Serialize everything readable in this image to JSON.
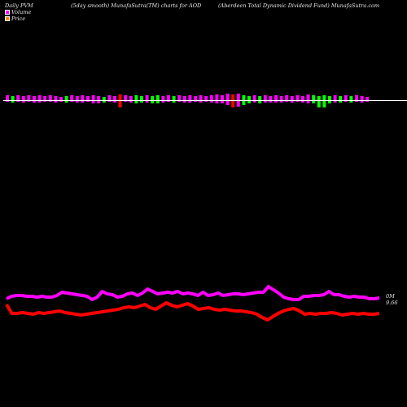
{
  "header": {
    "left": "Daily PVM",
    "center": "(5day smooth) MunafaSutra(TM) charts for AOD",
    "right": "(Aberdeen Total Dynamic Dividend Fund) MunafaSutra.com"
  },
  "legend": {
    "volume": {
      "label": "Volume",
      "color": "#ff00ff"
    },
    "price": {
      "label": "Price",
      "color": "#ff8c00"
    }
  },
  "colors": {
    "up": "#ff00ff",
    "down": "#00ff00",
    "spike": "#ff0000",
    "volume_line": "#ff00ff",
    "price_line": "#ff0000",
    "baseline": "#ffffff"
  },
  "chart_data": {
    "type": "bar",
    "bars": [
      {
        "h": 6,
        "d": 2,
        "c": "up"
      },
      {
        "h": 5,
        "d": 3,
        "c": "down"
      },
      {
        "h": 6,
        "d": 2,
        "c": "up"
      },
      {
        "h": 5,
        "d": 3,
        "c": "up"
      },
      {
        "h": 6,
        "d": 2,
        "c": "up"
      },
      {
        "h": 5,
        "d": 3,
        "c": "up"
      },
      {
        "h": 6,
        "d": 3,
        "c": "up"
      },
      {
        "h": 5,
        "d": 2,
        "c": "up"
      },
      {
        "h": 6,
        "d": 2,
        "c": "up"
      },
      {
        "h": 5,
        "d": 3,
        "c": "up"
      },
      {
        "h": 4,
        "d": 2,
        "c": "up"
      },
      {
        "h": 5,
        "d": 3,
        "c": "down"
      },
      {
        "h": 6,
        "d": 2,
        "c": "up"
      },
      {
        "h": 5,
        "d": 3,
        "c": "up"
      },
      {
        "h": 6,
        "d": 3,
        "c": "up"
      },
      {
        "h": 5,
        "d": 2,
        "c": "up"
      },
      {
        "h": 6,
        "d": 4,
        "c": "up"
      },
      {
        "h": 5,
        "d": 4,
        "c": "up"
      },
      {
        "h": 4,
        "d": 3,
        "c": "down"
      },
      {
        "h": 6,
        "d": 2,
        "c": "up"
      },
      {
        "h": 5,
        "d": 3,
        "c": "up"
      },
      {
        "h": 7,
        "d": 9,
        "c": "spike"
      },
      {
        "h": 6,
        "d": 2,
        "c": "up"
      },
      {
        "h": 5,
        "d": 3,
        "c": "up"
      },
      {
        "h": 6,
        "d": 4,
        "c": "down"
      },
      {
        "h": 5,
        "d": 3,
        "c": "down"
      },
      {
        "h": 6,
        "d": 3,
        "c": "up"
      },
      {
        "h": 5,
        "d": 4,
        "c": "down"
      },
      {
        "h": 6,
        "d": 4,
        "c": "down"
      },
      {
        "h": 5,
        "d": 3,
        "c": "up"
      },
      {
        "h": 6,
        "d": 2,
        "c": "up"
      },
      {
        "h": 5,
        "d": 3,
        "c": "down"
      },
      {
        "h": 6,
        "d": 2,
        "c": "up"
      },
      {
        "h": 5,
        "d": 3,
        "c": "up"
      },
      {
        "h": 6,
        "d": 3,
        "c": "up"
      },
      {
        "h": 5,
        "d": 2,
        "c": "up"
      },
      {
        "h": 6,
        "d": 3,
        "c": "up"
      },
      {
        "h": 5,
        "d": 2,
        "c": "up"
      },
      {
        "h": 6,
        "d": 3,
        "c": "up"
      },
      {
        "h": 7,
        "d": 4,
        "c": "up"
      },
      {
        "h": 6,
        "d": 4,
        "c": "up"
      },
      {
        "h": 8,
        "d": 6,
        "c": "up"
      },
      {
        "h": 7,
        "d": 9,
        "c": "spike"
      },
      {
        "h": 8,
        "d": 8,
        "c": "up"
      },
      {
        "h": 6,
        "d": 6,
        "c": "down"
      },
      {
        "h": 5,
        "d": 4,
        "c": "down"
      },
      {
        "h": 6,
        "d": 3,
        "c": "up"
      },
      {
        "h": 5,
        "d": 4,
        "c": "down"
      },
      {
        "h": 6,
        "d": 3,
        "c": "up"
      },
      {
        "h": 5,
        "d": 3,
        "c": "up"
      },
      {
        "h": 6,
        "d": 3,
        "c": "up"
      },
      {
        "h": 5,
        "d": 3,
        "c": "up"
      },
      {
        "h": 6,
        "d": 2,
        "c": "up"
      },
      {
        "h": 5,
        "d": 3,
        "c": "up"
      },
      {
        "h": 6,
        "d": 2,
        "c": "up"
      },
      {
        "h": 5,
        "d": 3,
        "c": "up"
      },
      {
        "h": 7,
        "d": 4,
        "c": "up"
      },
      {
        "h": 6,
        "d": 4,
        "c": "down"
      },
      {
        "h": 5,
        "d": 9,
        "c": "down"
      },
      {
        "h": 6,
        "d": 9,
        "c": "down"
      },
      {
        "h": 5,
        "d": 4,
        "c": "down"
      },
      {
        "h": 6,
        "d": 3,
        "c": "up"
      },
      {
        "h": 5,
        "d": 3,
        "c": "down"
      },
      {
        "h": 6,
        "d": 2,
        "c": "up"
      },
      {
        "h": 5,
        "d": 3,
        "c": "down"
      },
      {
        "h": 6,
        "d": 2,
        "c": "up"
      },
      {
        "h": 5,
        "d": 3,
        "c": "up"
      },
      {
        "h": 4,
        "d": 2,
        "c": "up"
      }
    ],
    "volume_line": [
      367,
      364,
      363,
      363,
      364,
      364,
      365,
      364,
      365,
      365,
      363,
      359,
      360,
      361,
      362,
      363,
      364,
      368,
      365,
      358,
      361,
      362,
      365,
      364,
      361,
      360,
      363,
      360,
      355,
      358,
      361,
      360,
      359,
      360,
      358,
      361,
      360,
      361,
      363,
      359,
      363,
      362,
      360,
      363,
      362,
      361,
      361,
      362,
      361,
      360,
      359,
      359,
      352,
      356,
      360,
      365,
      367,
      368,
      368,
      364,
      364,
      363,
      363,
      362,
      358,
      362,
      362,
      364,
      365,
      364,
      365,
      365,
      367,
      367,
      366
    ],
    "price_line": [
      374,
      385,
      385,
      384,
      385,
      386,
      384,
      385,
      384,
      383,
      382,
      384,
      385,
      386,
      387,
      386,
      385,
      384,
      383,
      382,
      381,
      380,
      378,
      377,
      378,
      376,
      374,
      378,
      380,
      376,
      372,
      375,
      377,
      375,
      373,
      376,
      380,
      379,
      378,
      380,
      381,
      380,
      381,
      382,
      382,
      383,
      384,
      386,
      390,
      393,
      389,
      385,
      382,
      380,
      379,
      382,
      386,
      385,
      386,
      385,
      385,
      384,
      385,
      387,
      386,
      385,
      386,
      385,
      386,
      386,
      385
    ],
    "end_labels": {
      "volume": "0M",
      "price": "9.66"
    }
  }
}
